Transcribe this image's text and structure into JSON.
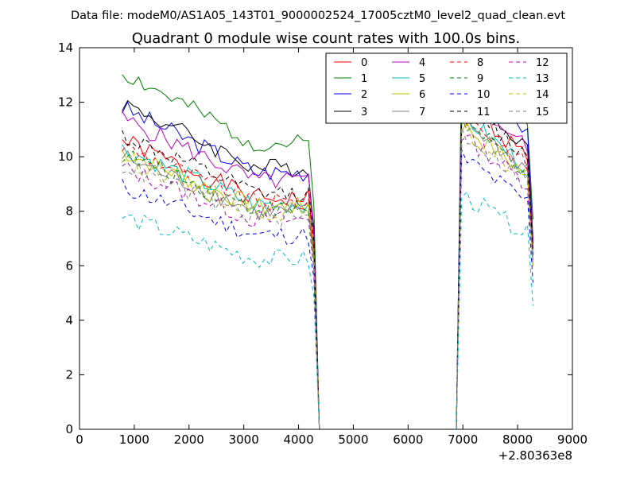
{
  "suptitle": "Data file: modeM0/AS1A05_143T01_9000002524_17005cztM0_level2_quad_clean.evt",
  "chart_data": {
    "type": "line",
    "title": "Quadrant 0 module wise count rates with 100.0s bins.",
    "xlabel": "",
    "ylabel": "",
    "x_offset_label": "+2.80363e8",
    "xlim": [
      0,
      9000
    ],
    "ylim": [
      0,
      14
    ],
    "xticks": [
      0,
      1000,
      2000,
      3000,
      4000,
      5000,
      6000,
      7000,
      8000,
      9000
    ],
    "yticks": [
      0,
      2,
      4,
      6,
      8,
      10,
      12,
      14
    ],
    "grid": false,
    "legend_position": "top-right",
    "legend_columns": 4,
    "x": [
      780,
      880,
      980,
      1080,
      1180,
      1280,
      1380,
      1480,
      1580,
      1680,
      1780,
      1880,
      1980,
      2080,
      2180,
      2280,
      2380,
      2480,
      2580,
      2680,
      2780,
      2880,
      2980,
      3080,
      3180,
      3280,
      3380,
      3480,
      3580,
      3680,
      3780,
      3880,
      3980,
      4080,
      4180,
      4280,
      4380,
      5000,
      6000,
      6880,
      6980,
      7080,
      7180,
      7280,
      7380,
      7480,
      7580,
      7680,
      7780,
      7880,
      7980,
      8080,
      8180,
      8280
    ],
    "series": [
      {
        "name": "0",
        "color": "#ff0000",
        "dash": "solid",
        "level": 10.6,
        "peak": 12.0
      },
      {
        "name": "1",
        "color": "#008000",
        "dash": "solid",
        "level": 13.1,
        "peak": 13.8
      },
      {
        "name": "2",
        "color": "#0000ff",
        "dash": "solid",
        "level": 11.8,
        "peak": 13.0
      },
      {
        "name": "3",
        "color": "#000000",
        "dash": "solid",
        "level": 12.0,
        "peak": 12.5
      },
      {
        "name": "4",
        "color": "#bf00bf",
        "dash": "solid",
        "level": 11.4,
        "peak": 12.4
      },
      {
        "name": "5",
        "color": "#00bfbf",
        "dash": "solid",
        "level": 10.3,
        "peak": 11.5
      },
      {
        "name": "6",
        "color": "#bfbf00",
        "dash": "solid",
        "level": 10.2,
        "peak": 11.2
      },
      {
        "name": "7",
        "color": "#808080",
        "dash": "solid",
        "level": 10.0,
        "peak": 11.4
      },
      {
        "name": "8",
        "color": "#ff0000",
        "dash": "dashed",
        "level": 10.4,
        "peak": 11.6
      },
      {
        "name": "9",
        "color": "#008000",
        "dash": "dashed",
        "level": 10.1,
        "peak": 11.3
      },
      {
        "name": "10",
        "color": "#0000ff",
        "dash": "dashed",
        "level": 8.9,
        "peak": 10.0
      },
      {
        "name": "11",
        "color": "#000000",
        "dash": "dashed",
        "level": 10.8,
        "peak": 12.0
      },
      {
        "name": "12",
        "color": "#bf00bf",
        "dash": "dashed",
        "level": 9.6,
        "peak": 10.8
      },
      {
        "name": "13",
        "color": "#00bfbf",
        "dash": "dashed",
        "level": 7.8,
        "peak": 8.6
      },
      {
        "name": "14",
        "color": "#bfbf00",
        "dash": "dashed",
        "level": 10.0,
        "peak": 11.0
      },
      {
        "name": "15",
        "color": "#808080",
        "dash": "dashed",
        "level": 9.7,
        "peak": 10.9
      }
    ]
  }
}
